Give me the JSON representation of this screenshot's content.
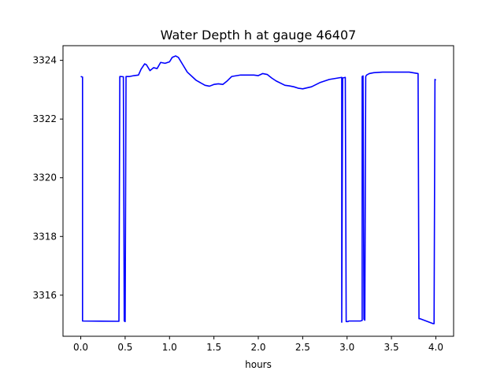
{
  "chart_data": {
    "type": "line",
    "title": "Water Depth h at gauge 46407",
    "xlabel": "hours",
    "ylabel": "",
    "xlim": [
      -0.2,
      4.2
    ],
    "ylim": [
      3314.6,
      3324.5
    ],
    "xticks": [
      0.0,
      0.5,
      1.0,
      1.5,
      2.0,
      2.5,
      3.0,
      3.5,
      4.0
    ],
    "xtick_labels": [
      "0.0",
      "0.5",
      "1.0",
      "1.5",
      "2.0",
      "2.5",
      "3.0",
      "3.5",
      "4.0"
    ],
    "yticks": [
      3316,
      3318,
      3320,
      3322,
      3324
    ],
    "ytick_labels": [
      "3316",
      "3318",
      "3320",
      "3322",
      "3324"
    ],
    "grid": false,
    "line_color": "#0000ff",
    "series": [
      {
        "x": [
          0.0,
          0.02,
          0.02,
          0.43,
          0.44,
          0.45,
          0.48,
          0.49,
          0.5,
          0.51,
          0.52,
          0.55,
          0.6,
          0.65,
          0.68,
          0.72,
          0.74,
          0.78,
          0.82,
          0.86,
          0.9,
          0.95,
          1.0,
          1.03,
          1.07,
          1.1,
          1.15,
          1.2,
          1.3,
          1.4,
          1.45,
          1.5,
          1.55,
          1.6,
          1.65,
          1.7,
          1.8,
          1.9,
          1.95,
          2.0,
          2.05,
          2.1,
          2.15,
          2.2,
          2.3,
          2.35,
          2.4,
          2.45,
          2.5,
          2.6,
          2.7,
          2.8,
          2.9,
          2.94,
          2.94,
          2.95,
          2.98,
          2.99,
          3.0,
          3.01,
          3.02,
          3.15,
          3.17,
          3.17,
          3.18,
          3.19,
          3.2,
          3.21,
          3.22,
          3.25,
          3.3,
          3.4,
          3.5,
          3.6,
          3.7,
          3.8,
          3.81,
          3.82,
          3.97,
          3.98,
          3.99,
          4.0
        ],
        "y": [
          3323.45,
          3323.43,
          3315.12,
          3315.11,
          3323.45,
          3323.45,
          3323.44,
          3315.12,
          3315.1,
          3323.45,
          3323.45,
          3323.45,
          3323.48,
          3323.5,
          3323.7,
          3323.88,
          3323.85,
          3323.65,
          3323.75,
          3323.72,
          3323.93,
          3323.9,
          3323.95,
          3324.1,
          3324.15,
          3324.1,
          3323.85,
          3323.6,
          3323.32,
          3323.15,
          3323.12,
          3323.18,
          3323.2,
          3323.18,
          3323.3,
          3323.45,
          3323.5,
          3323.5,
          3323.5,
          3323.48,
          3323.55,
          3323.52,
          3323.4,
          3323.3,
          3323.15,
          3323.13,
          3323.1,
          3323.05,
          3323.03,
          3323.1,
          3323.25,
          3323.35,
          3323.4,
          3323.42,
          3315.08,
          3323.4,
          3323.42,
          3315.1,
          3315.1,
          3315.1,
          3315.12,
          3315.12,
          3315.14,
          3323.45,
          3323.47,
          3315.18,
          3315.15,
          3323.45,
          3323.5,
          3323.55,
          3323.58,
          3323.6,
          3323.6,
          3323.6,
          3323.6,
          3323.55,
          3315.2,
          3315.2,
          3315.03,
          3315.03,
          3323.35,
          3323.32
        ]
      }
    ]
  }
}
